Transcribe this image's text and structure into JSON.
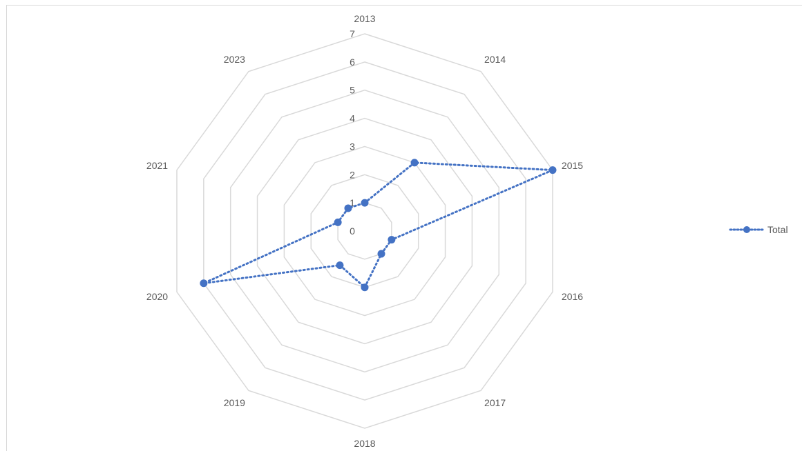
{
  "chart_data": {
    "type": "radar",
    "categories": [
      "2013",
      "2014",
      "2015",
      "2016",
      "2017",
      "2018",
      "2019",
      "2020",
      "2021",
      "2023"
    ],
    "series": [
      {
        "name": "Total",
        "values": [
          1,
          3,
          7,
          1,
          1,
          2,
          1.5,
          6,
          1,
          1
        ],
        "color": "#4472c4",
        "line_style": "dotted",
        "marker": "circle"
      }
    ],
    "radial_ticks": [
      "0",
      "1",
      "2",
      "3",
      "4",
      "5",
      "6",
      "7"
    ],
    "rlim": [
      0,
      7
    ],
    "grid": true,
    "legend_position": "right"
  }
}
